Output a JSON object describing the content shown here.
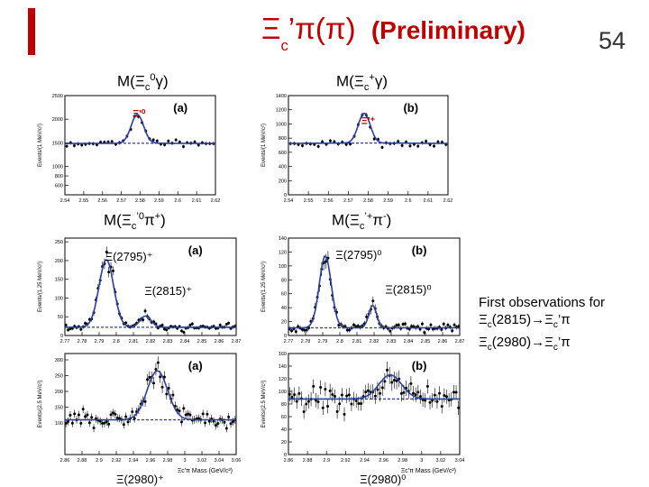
{
  "slide": {
    "title_main": "Ξ",
    "title_sub": "c",
    "title_rest": "’π(π)",
    "title_note": "(Preliminary)",
    "page_number": "54",
    "side_note": {
      "line1": "First observations for",
      "line2_a": "Ξ",
      "line2_sub": "c",
      "line2_b": "(2815)→Ξ",
      "line2_sub2": "c",
      "line2_c": "’π",
      "line3_a": "Ξ",
      "line3_sub": "c",
      "line3_b": "(2980)→Ξ",
      "line3_sub2": "c",
      "line3_c": "’π"
    },
    "row_labels": {
      "r1_left": "M(Ξc0γ)",
      "r1_right": "M(Ξc+γ)",
      "r2_left": "M(Ξc’0π+)",
      "r2_right": "M(Ξc’+π-)"
    }
  },
  "chart_data": [
    {
      "type": "scatter",
      "panel_tag": "(a)",
      "xlim": [
        2.54,
        2.62
      ],
      "ylim": [
        400,
        2500
      ],
      "xticks": [
        2.54,
        2.55,
        2.56,
        2.57,
        2.58,
        2.59,
        2.6,
        2.61,
        2.62
      ],
      "xtick_labels": [
        "2.54",
        "2.55",
        "2.56",
        "2.57",
        "2.58",
        "2.59",
        "2.6",
        "2.61",
        "2.62"
      ],
      "yticks": [
        600,
        800,
        1000,
        1500,
        2000,
        2500
      ],
      "ytick_labels": [
        "600",
        "800",
        "1000",
        "1500",
        "2000",
        "2500"
      ],
      "ylabel": "Events/(1 MeV/c²)",
      "xlabel": "",
      "peaks": [
        {
          "label": "Ξ'⁰",
          "mass": 2.579,
          "label_x": 2.576,
          "label_y": 2050
        }
      ],
      "signal": [
        {
          "mean": 2.5785,
          "sigma": 0.0033,
          "amp": 610
        }
      ],
      "background": {
        "a": 1490,
        "b": 0,
        "c": -3000
      },
      "points_per_unit": 500
    },
    {
      "type": "scatter",
      "panel_tag": "(b)",
      "xlim": [
        2.54,
        2.62
      ],
      "ylim": [
        0,
        1400
      ],
      "xticks": [
        2.54,
        2.55,
        2.56,
        2.57,
        2.58,
        2.59,
        2.6,
        2.61,
        2.62
      ],
      "xtick_labels": [
        "2.54",
        "2.55",
        "2.56",
        "2.57",
        "2.58",
        "2.59",
        "2.6",
        "2.61",
        "2.62"
      ],
      "yticks": [
        0,
        200,
        400,
        600,
        800,
        1000,
        1200,
        1400
      ],
      "ytick_labels": [
        "0",
        "200",
        "400",
        "600",
        "800",
        "1000",
        "1200",
        "1400"
      ],
      "ylabel": "Events/(1 MeV/c²)",
      "xlabel": "",
      "peaks": [
        {
          "label": "Ξ'⁺",
          "mass": 2.578,
          "label_x": 2.5765,
          "label_y": 1000
        }
      ],
      "signal": [
        {
          "mean": 2.578,
          "sigma": 0.003,
          "amp": 420
        }
      ],
      "background": {
        "a": 730,
        "b": 0,
        "c": -3500
      },
      "points_per_unit": 500
    },
    {
      "type": "scatter",
      "panel_tag": "(a)",
      "xlim": [
        2.77,
        2.87
      ],
      "ylim": [
        0,
        260
      ],
      "xticks": [
        2.77,
        2.78,
        2.79,
        2.8,
        2.81,
        2.82,
        2.83,
        2.84,
        2.85,
        2.86,
        2.87
      ],
      "xtick_labels": [
        "2.77",
        "2.78",
        "2.79",
        "2.8",
        "2.81",
        "2.82",
        "2.83",
        "2.84",
        "2.85",
        "2.86",
        "2.87"
      ],
      "yticks": [
        0,
        50,
        100,
        150,
        200,
        250
      ],
      "ytick_labels": [
        "0",
        "50",
        "100",
        "150",
        "200",
        "250"
      ],
      "ylabel": "Events/(1.25 MeV/c²)",
      "xlabel": "",
      "peaks": [
        {
          "label": "Ξ(2795)⁺",
          "mass": 2.794,
          "label_x": 2.7935,
          "label_y": 200
        },
        {
          "label": "Ξ(2815)⁺",
          "mass": 2.818,
          "label_x": 2.8165,
          "label_y": 108
        }
      ],
      "signal": [
        {
          "mean": 2.7942,
          "sigma": 0.0043,
          "amp": 180
        },
        {
          "mean": 2.8171,
          "sigma": 0.0032,
          "amp": 30
        }
      ],
      "background": {
        "a": 22,
        "b": 0,
        "c": 0
      },
      "points_per_unit": 800
    },
    {
      "type": "scatter",
      "panel_tag": "(b)",
      "xlim": [
        2.77,
        2.87
      ],
      "ylim": [
        0,
        140
      ],
      "xticks": [
        2.77,
        2.78,
        2.79,
        2.8,
        2.81,
        2.82,
        2.83,
        2.84,
        2.85,
        2.86,
        2.87
      ],
      "xtick_labels": [
        "2.77",
        "2.78",
        "2.79",
        "2.8",
        "2.81",
        "2.82",
        "2.83",
        "2.84",
        "2.85",
        "2.86",
        "2.87"
      ],
      "yticks": [
        0,
        20,
        40,
        60,
        80,
        100,
        120,
        140
      ],
      "ytick_labels": [
        "0",
        "20",
        "40",
        "60",
        "80",
        "100",
        "120",
        "140"
      ],
      "ylabel": "Events/(1.25 MeV/c²)",
      "xlabel": "",
      "peaks": [
        {
          "label": "Ξ(2795)⁰",
          "mass": 2.791,
          "label_x": 2.7975,
          "label_y": 110
        },
        {
          "label": "Ξ(2815)⁰",
          "mass": 2.819,
          "label_x": 2.8265,
          "label_y": 60
        }
      ],
      "signal": [
        {
          "mean": 2.7915,
          "sigma": 0.0035,
          "amp": 103
        },
        {
          "mean": 2.8192,
          "sigma": 0.0023,
          "amp": 32
        }
      ],
      "background": {
        "a": 11,
        "b": 0,
        "c": 0
      },
      "points_per_unit": 800
    },
    {
      "type": "scatter",
      "panel_tag": "(a)",
      "xlim": [
        2.86,
        3.06
      ],
      "ylim": [
        0,
        320
      ],
      "xticks": [
        2.86,
        2.88,
        2.9,
        2.92,
        2.94,
        2.96,
        2.98,
        3.0,
        3.02,
        3.04,
        3.06
      ],
      "xtick_labels": [
        "2.86",
        "2.88",
        "2.9",
        "2.92",
        "2.94",
        "2.96",
        "2.98",
        "3",
        "3.02",
        "3.04",
        "3.06"
      ],
      "yticks": [
        100,
        150,
        200,
        250,
        300
      ],
      "ytick_labels": [
        "100",
        "150",
        "200",
        "250",
        "300"
      ],
      "ylabel": "Events/(2.5 MeV/c²)",
      "xlabel": "Ξc'π Mass (GeV/c²)",
      "peaks": [
        {
          "label": "Ξ(2980)⁺",
          "mass": 2.968,
          "label_x": 2.92,
          "label_y": 0
        }
      ],
      "signal": [
        {
          "mean": 2.968,
          "sigma": 0.012,
          "amp": 155
        }
      ],
      "background": {
        "a": 110,
        "b": 0,
        "c": 0
      },
      "points_per_unit": 400
    },
    {
      "type": "scatter",
      "panel_tag": "(b)",
      "xlim": [
        2.86,
        3.04
      ],
      "ylim": [
        0,
        160
      ],
      "xticks": [
        2.86,
        2.88,
        2.9,
        2.92,
        2.94,
        2.96,
        2.98,
        3.0,
        3.02,
        3.04
      ],
      "xtick_labels": [
        "2.86",
        "2.88",
        "2.9",
        "2.92",
        "2.94",
        "2.96",
        "2.98",
        "3",
        "3.02",
        "3.04"
      ],
      "yticks": [
        0,
        20,
        40,
        60,
        80,
        100,
        120,
        140,
        160
      ],
      "ytick_labels": [
        "0",
        "20",
        "40",
        "60",
        "80",
        "100",
        "120",
        "140",
        "160"
      ],
      "ylabel": "Events/(2.5 MeV/c²)",
      "xlabel": "Ξc'π Mass (GeV/c²)",
      "peaks": [
        {
          "label": "Ξ(2980)⁰",
          "mass": 2.967,
          "label_x": 2.935,
          "label_y": 5
        }
      ],
      "signal": [
        {
          "mean": 2.967,
          "sigma": 0.012,
          "amp": 38
        }
      ],
      "background": {
        "a": 88,
        "b": 0,
        "c": 0
      },
      "points_per_unit": 400
    }
  ]
}
